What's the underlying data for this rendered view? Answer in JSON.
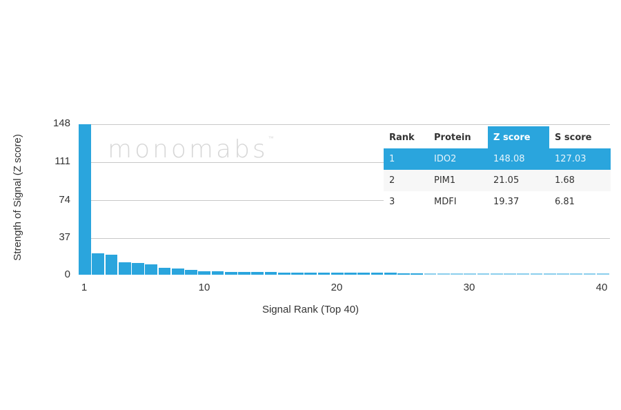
{
  "chart_data": {
    "type": "bar",
    "title": "",
    "xlabel": "Signal Rank (Top 40)",
    "ylabel": "Strength of Signal (Z score)",
    "ylim": [
      0,
      148
    ],
    "yticks": [
      0,
      37,
      74,
      111,
      148
    ],
    "xticks": [
      1,
      10,
      20,
      30,
      40
    ],
    "grid": true,
    "categories": [
      1,
      2,
      3,
      4,
      5,
      6,
      7,
      8,
      9,
      10,
      11,
      12,
      13,
      14,
      15,
      16,
      17,
      18,
      19,
      20,
      21,
      22,
      23,
      24,
      25,
      26,
      27,
      28,
      29,
      30,
      31,
      32,
      33,
      34,
      35,
      36,
      37,
      38,
      39,
      40
    ],
    "values": [
      148.08,
      21.05,
      19.37,
      12,
      11.5,
      10,
      6.5,
      6.3,
      4.8,
      3.5,
      3.2,
      3.0,
      2.8,
      2.6,
      2.4,
      2.3,
      2.2,
      2.1,
      2.0,
      2.0,
      1.9,
      1.9,
      1.8,
      1.8,
      1.7,
      1.7,
      1.6,
      1.6,
      1.5,
      1.5,
      1.5,
      1.4,
      1.4,
      1.4,
      1.3,
      1.3,
      1.3,
      1.2,
      1.2,
      1.2
    ],
    "bar_color": "#2aa5dd",
    "table": {
      "columns": [
        "Rank",
        "Protein",
        "Z score",
        "S score"
      ],
      "rows": [
        [
          "1",
          "IDO2",
          "148.08",
          "127.03"
        ],
        [
          "2",
          "PIM1",
          "21.05",
          "1.68"
        ],
        [
          "3",
          "MDFI",
          "19.37",
          "6.81"
        ]
      ]
    }
  },
  "watermark": "monomabs",
  "watermark_tm": "™"
}
